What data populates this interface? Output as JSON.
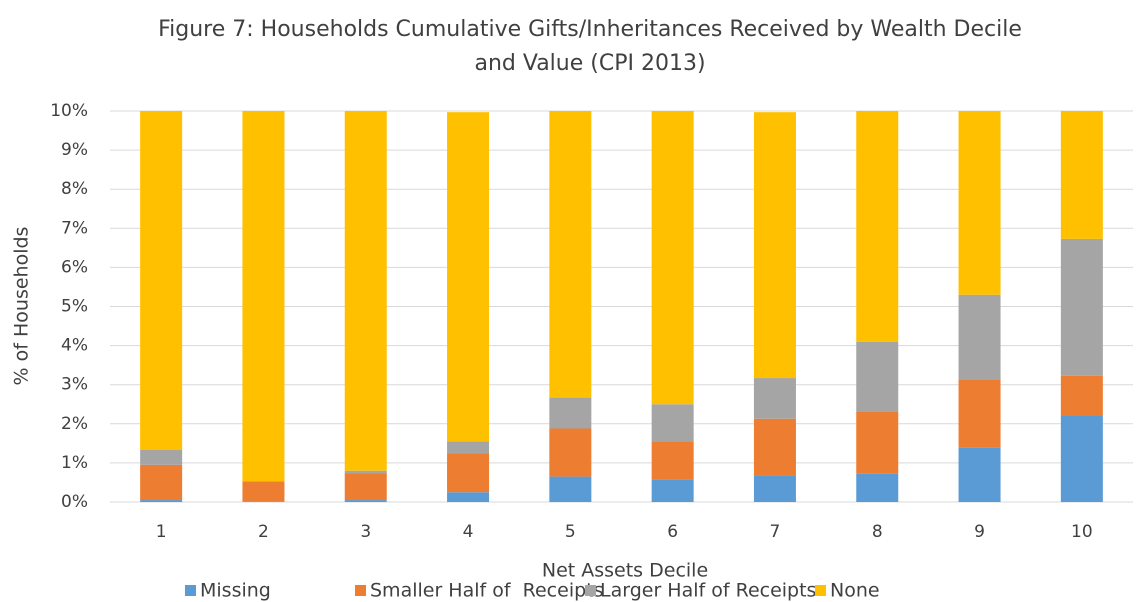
{
  "chart_data": {
    "type": "stacked_bar",
    "title": [
      "Figure 7: Households Cumulative Gifts/Inheritances Received by Wealth Decile",
      "and Value (CPI 2013)"
    ],
    "x_label": "Net Assets Decile",
    "y_label": "% of Households",
    "categories": [
      "1",
      "2",
      "3",
      "4",
      "5",
      "6",
      "7",
      "8",
      "9",
      "10"
    ],
    "series": [
      {
        "name": "Missing",
        "color": "#5b9bd5",
        "values": [
          0.05,
          0.02,
          0.05,
          0.25,
          0.65,
          0.58,
          0.68,
          0.72,
          1.4,
          2.2
        ]
      },
      {
        "name": "Smaller Half of  Receipts",
        "color": "#ed7d31",
        "values": [
          0.9,
          0.51,
          0.68,
          1.0,
          1.23,
          0.97,
          1.45,
          1.6,
          1.72,
          1.03
        ]
      },
      {
        "name": "Larger Half of Receipts",
        "color": "#a5a5a5",
        "values": [
          0.38,
          0.0,
          0.07,
          0.3,
          0.79,
          0.95,
          1.04,
          1.78,
          2.18,
          3.5
        ]
      },
      {
        "name": "None",
        "color": "#ffc000",
        "values": [
          8.67,
          9.47,
          9.2,
          8.42,
          7.33,
          7.5,
          6.8,
          5.9,
          4.7,
          3.27
        ]
      }
    ],
    "ylim": [
      0,
      10
    ],
    "yticks": [
      {
        "value": 0,
        "label": "0%"
      },
      {
        "value": 1,
        "label": "1%"
      },
      {
        "value": 2,
        "label": "2%"
      },
      {
        "value": 3,
        "label": "3%"
      },
      {
        "value": 4,
        "label": "4%"
      },
      {
        "value": 5,
        "label": "5%"
      },
      {
        "value": 6,
        "label": "6%"
      },
      {
        "value": 7,
        "label": "7%"
      },
      {
        "value": 8,
        "label": "8%"
      },
      {
        "value": 9,
        "label": "9%"
      },
      {
        "value": 10,
        "label": "10%"
      }
    ],
    "grid": true,
    "legend": "bottom"
  }
}
